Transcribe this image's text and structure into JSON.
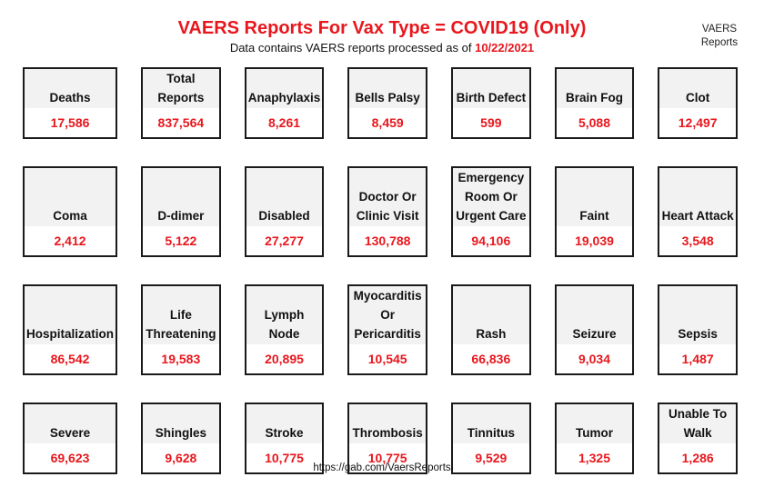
{
  "header": {
    "title": "VAERS Reports For Vax Type = COVID19 (Only)",
    "subtitle_prefix": "Data contains VAERS reports processed as of ",
    "subtitle_date": "10/22/2021",
    "brand_line1": "VAERS",
    "brand_line2": "Reports"
  },
  "tiles": [
    {
      "label": "Deaths",
      "value": "17,586"
    },
    {
      "label": "Total Reports",
      "value": "837,564"
    },
    {
      "label": "Anaphylaxis",
      "value": "8,261"
    },
    {
      "label": "Bells Palsy",
      "value": "8,459"
    },
    {
      "label": "Birth Defect",
      "value": "599"
    },
    {
      "label": "Brain Fog",
      "value": "5,088"
    },
    {
      "label": "Clot",
      "value": "12,497"
    },
    {
      "label": "Coma",
      "value": "2,412"
    },
    {
      "label": "D-dimer",
      "value": "5,122"
    },
    {
      "label": "Disabled",
      "value": "27,277"
    },
    {
      "label": "Doctor Or Clinic Visit",
      "value": "130,788"
    },
    {
      "label": "Emergency Room Or Urgent Care",
      "value": "94,106"
    },
    {
      "label": "Faint",
      "value": "19,039"
    },
    {
      "label": "Heart Attack",
      "value": "3,548"
    },
    {
      "label": "Hospitalization",
      "value": "86,542"
    },
    {
      "label": "Life Threatening",
      "value": "19,583"
    },
    {
      "label": "Lymph Node",
      "value": "20,895"
    },
    {
      "label": "Myocarditis Or Pericarditis",
      "value": "10,545"
    },
    {
      "label": "Rash",
      "value": "66,836"
    },
    {
      "label": "Seizure",
      "value": "9,034"
    },
    {
      "label": "Sepsis",
      "value": "1,487"
    },
    {
      "label": "Severe",
      "value": "69,623"
    },
    {
      "label": "Shingles",
      "value": "9,628"
    },
    {
      "label": "Stroke",
      "value": "10,775"
    },
    {
      "label": "Thrombosis",
      "value": "10,775"
    },
    {
      "label": "Tinnitus",
      "value": "9,529"
    },
    {
      "label": "Tumor",
      "value": "1,325"
    },
    {
      "label": "Unable To Walk",
      "value": "1,286"
    }
  ],
  "footer": {
    "url": "https://gab.com/VaersReports"
  },
  "colors": {
    "accent_red": "#e8171d",
    "tile_bg": "#f2f2f2",
    "border": "#1a1a1a"
  }
}
